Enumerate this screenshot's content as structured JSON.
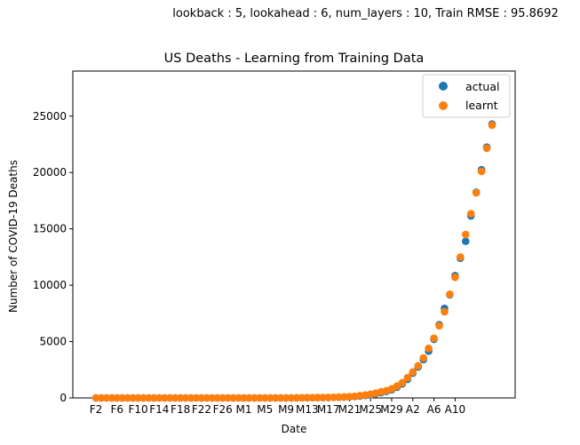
{
  "figure": {
    "suptitle": "lookback : 5, lookahead : 6, num_layers : 10, Train RMSE : 95.8692"
  },
  "chart_data": {
    "type": "scatter",
    "title": "US Deaths - Learning from Training Data",
    "xlabel": "Date",
    "ylabel": "Number of COVID-19 Deaths",
    "ylim": [
      0,
      29000
    ],
    "y_ticks": [
      0,
      5000,
      10000,
      15000,
      20000,
      25000
    ],
    "x_tick_labels": [
      "F2",
      "F6",
      "F10",
      "F14",
      "F18",
      "F22",
      "F26",
      "M1",
      "M5",
      "M9",
      "M13",
      "M17",
      "M21",
      "M25",
      "M29",
      "A2",
      "A6",
      "A10"
    ],
    "legend": {
      "position": "top-right",
      "entries": [
        "actual",
        "learnt"
      ]
    },
    "colors": {
      "actual": "#1f77b4",
      "learnt": "#ff7f0e"
    },
    "series": [
      {
        "name": "actual",
        "values": [
          0,
          0,
          0,
          0,
          0,
          0,
          0,
          0,
          0,
          0,
          0,
          0,
          0,
          0,
          0,
          0,
          0,
          0,
          0,
          0,
          0,
          0,
          0,
          0,
          0,
          0,
          0,
          0,
          0,
          0,
          0,
          0,
          0,
          0,
          0,
          0,
          0,
          0,
          5,
          10,
          15,
          20,
          25,
          30,
          40,
          50,
          60,
          70,
          90,
          120,
          160,
          220,
          280,
          380,
          480,
          580,
          720,
          950,
          1250,
          1650,
          2200,
          2750,
          3400,
          4150,
          5200,
          6500,
          7950,
          9150,
          10850,
          12400,
          13900,
          16150,
          18250,
          20250,
          22250,
          24300
        ]
      },
      {
        "name": "learnt",
        "values": [
          0,
          0,
          0,
          0,
          0,
          0,
          0,
          0,
          0,
          0,
          0,
          0,
          0,
          0,
          0,
          0,
          0,
          0,
          0,
          0,
          0,
          0,
          0,
          0,
          0,
          0,
          0,
          0,
          0,
          0,
          0,
          0,
          0,
          0,
          0,
          0,
          0,
          0,
          10,
          15,
          25,
          30,
          35,
          40,
          50,
          60,
          70,
          90,
          110,
          140,
          200,
          260,
          330,
          430,
          550,
          650,
          800,
          1050,
          1350,
          1800,
          2300,
          2850,
          3550,
          4400,
          5300,
          6400,
          7650,
          9200,
          10700,
          12500,
          14500,
          16350,
          18200,
          20100,
          22150,
          24200
        ]
      }
    ]
  }
}
